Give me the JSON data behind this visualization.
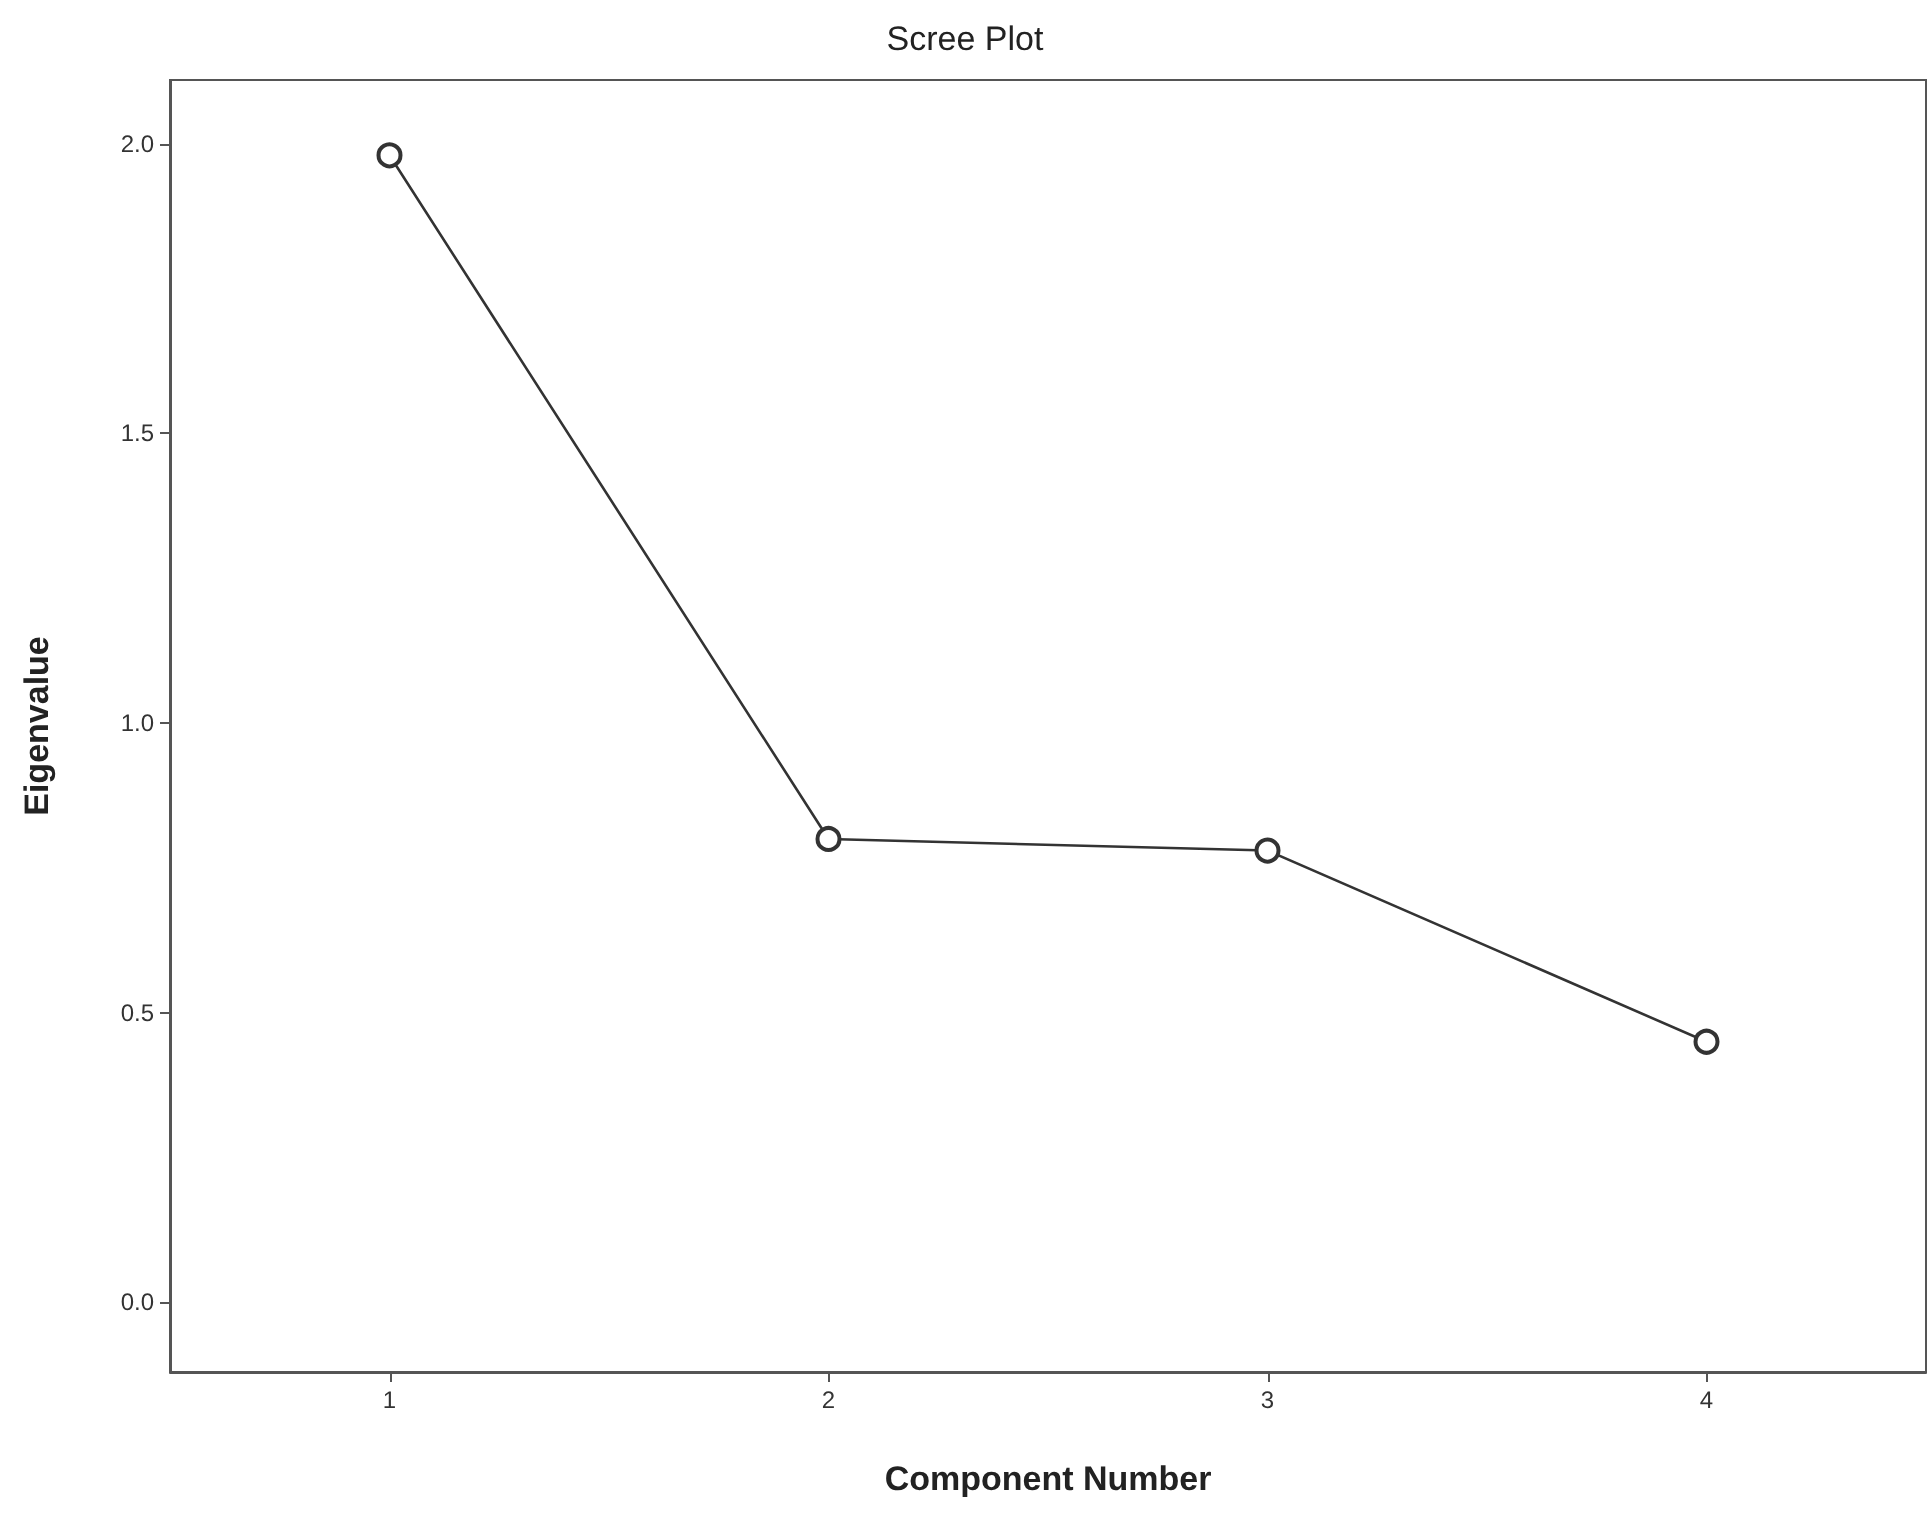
{
  "chart_data": {
    "type": "line",
    "title": "Scree Plot",
    "xlabel": "Component Number",
    "ylabel": "Eigenvalue",
    "categories": [
      "1",
      "2",
      "3",
      "4"
    ],
    "series": [
      {
        "color": "#333333",
        "values": [
          1.98,
          0.8,
          0.78,
          0.45
        ]
      }
    ],
    "ylim": [
      -0.12,
      2.11
    ],
    "yticks": [
      {
        "value": 0,
        "label": "0.0"
      },
      {
        "value": 0.5,
        "label": "0.5"
      },
      {
        "value": 1,
        "label": "1.0"
      },
      {
        "value": 1.5,
        "label": "1.5"
      },
      {
        "value": 2,
        "label": "2.0"
      }
    ],
    "grid": false,
    "marker": "circle",
    "line_style": "solid"
  }
}
